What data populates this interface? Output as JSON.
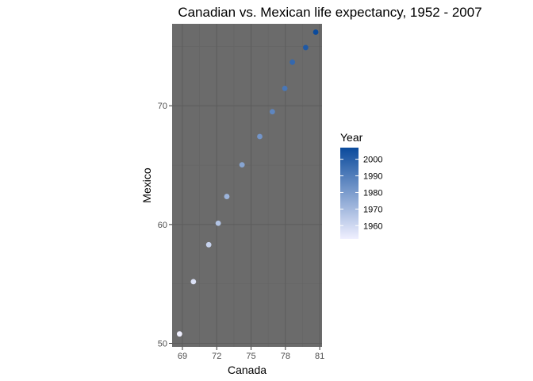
{
  "chart_data": {
    "type": "scatter",
    "title": "Canadian vs. Mexican life expectancy, 1952 - 2007",
    "xlabel": "Canada",
    "ylabel": "Mexico",
    "xlim": [
      68.1,
      81.2
    ],
    "ylim": [
      49.7,
      76.9
    ],
    "xticks": [
      69,
      72,
      75,
      78,
      81
    ],
    "yticks": [
      50,
      60,
      70
    ],
    "grid": true,
    "legend": {
      "title": "Year",
      "placement": "right",
      "min_year": 1952,
      "max_year": 2007,
      "ticks": [
        1960,
        1970,
        1980,
        1990,
        2000
      ],
      "color_low": "#f0f0ff",
      "color_high": "#0a4a9c"
    },
    "points": [
      {
        "year": 1952,
        "x": 68.75,
        "y": 50.79
      },
      {
        "year": 1957,
        "x": 69.96,
        "y": 55.19
      },
      {
        "year": 1962,
        "x": 71.3,
        "y": 58.3
      },
      {
        "year": 1967,
        "x": 72.13,
        "y": 60.11
      },
      {
        "year": 1972,
        "x": 72.88,
        "y": 62.36
      },
      {
        "year": 1977,
        "x": 74.21,
        "y": 65.03
      },
      {
        "year": 1982,
        "x": 75.76,
        "y": 67.41
      },
      {
        "year": 1987,
        "x": 76.86,
        "y": 69.5
      },
      {
        "year": 1992,
        "x": 77.95,
        "y": 71.46
      },
      {
        "year": 1997,
        "x": 78.61,
        "y": 73.67
      },
      {
        "year": 2002,
        "x": 79.77,
        "y": 74.9
      },
      {
        "year": 2007,
        "x": 80.65,
        "y": 76.2
      }
    ]
  },
  "colors": {
    "panel_background": "#6b6b6b",
    "grid_major": "#5c5c5c",
    "grid_minor": "#646464"
  }
}
